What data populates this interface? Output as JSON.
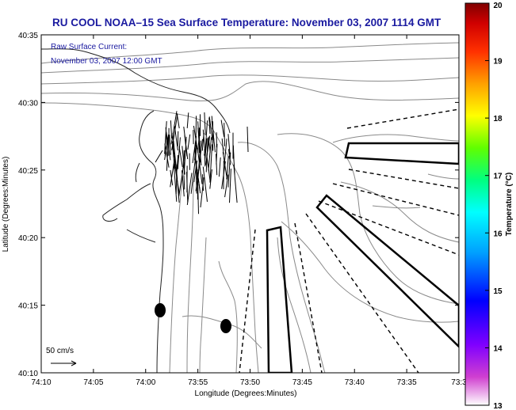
{
  "title": "RU COOL  NOAA–15  Sea Surface Temperature:  November 03, 2007 1114 GMT",
  "annotation": {
    "line1": "Raw Surface Current:",
    "line2": "November 03, 2007 12:00 GMT"
  },
  "axes": {
    "xlabel": "Longitude (Degrees:Minutes)",
    "ylabel": "Latitude (Degrees:Minutes)",
    "xticks": [
      "74:10",
      "74:05",
      "74:00",
      "73:55",
      "73:50",
      "73:45",
      "73:40",
      "73:35",
      "73:3"
    ],
    "yticks": [
      "40:35",
      "40:30",
      "40:25",
      "40:20",
      "40:15",
      "40:10"
    ]
  },
  "scale_label": "50 cm/s",
  "colorbar": {
    "label": "Temperature (°C)",
    "ticks": [
      "20",
      "19",
      "18",
      "17",
      "16",
      "15",
      "14",
      "13"
    ],
    "min": 13,
    "max": 20
  },
  "colors": {
    "title": "#1a1aa0",
    "annotation": "#1a1aa0",
    "contour": "#888888",
    "axes": "#000000"
  }
}
